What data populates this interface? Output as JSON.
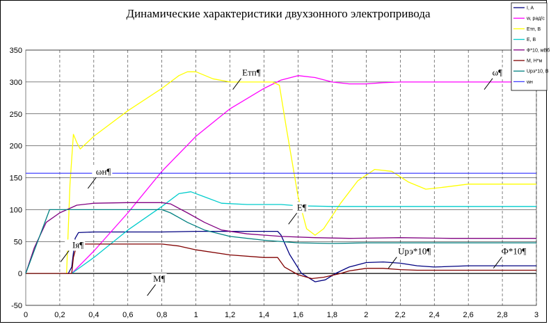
{
  "chart_data": {
    "type": "line",
    "title": "Динамические характеристики двухзонного электропривода",
    "xlabel": "",
    "ylabel": "",
    "xlim": [
      0,
      3
    ],
    "ylim": [
      -50,
      350
    ],
    "x_ticks": [
      0,
      0.2,
      0.4,
      0.6,
      0.8,
      1,
      1.2,
      1.4,
      1.6,
      1.8,
      2,
      2.2,
      2.4,
      2.6,
      2.8,
      3
    ],
    "x_tick_labels": [
      "0",
      "0,2",
      "0,4",
      "0,6",
      "0,8",
      "1",
      "1,2",
      "1,4",
      "1,6",
      "1,8",
      "2",
      "2,2",
      "2,4",
      "2,6",
      "2,8",
      "3"
    ],
    "y_ticks": [
      -50,
      0,
      50,
      100,
      150,
      200,
      250,
      300,
      350
    ],
    "y_tick_labels": [
      "-50",
      "0",
      "50",
      "100",
      "150",
      "200",
      "250",
      "300",
      "350"
    ],
    "grid": {
      "horizontal": true,
      "vertical": "dashed"
    },
    "legend_position": "top-right",
    "series": [
      {
        "name": "I, A",
        "color": "#000080",
        "points": [
          [
            0,
            0
          ],
          [
            0.25,
            0
          ],
          [
            0.27,
            10
          ],
          [
            0.29,
            55
          ],
          [
            0.31,
            64
          ],
          [
            0.4,
            65
          ],
          [
            0.8,
            65
          ],
          [
            1.0,
            66
          ],
          [
            1.2,
            66
          ],
          [
            1.48,
            66
          ],
          [
            1.5,
            60
          ],
          [
            1.55,
            30
          ],
          [
            1.62,
            0
          ],
          [
            1.7,
            -13
          ],
          [
            1.76,
            -10
          ],
          [
            1.82,
            0
          ],
          [
            1.9,
            10
          ],
          [
            2.0,
            17
          ],
          [
            2.1,
            18
          ],
          [
            2.2,
            16
          ],
          [
            2.3,
            12
          ],
          [
            2.4,
            10
          ],
          [
            2.6,
            12
          ],
          [
            2.8,
            12
          ],
          [
            3,
            12
          ]
        ]
      },
      {
        "name": "w, рад/с",
        "color": "#ff00ff",
        "points": [
          [
            0,
            0
          ],
          [
            0.27,
            0
          ],
          [
            0.4,
            35
          ],
          [
            0.6,
            95
          ],
          [
            0.8,
            160
          ],
          [
            1.0,
            215
          ],
          [
            1.2,
            258
          ],
          [
            1.4,
            290
          ],
          [
            1.5,
            303
          ],
          [
            1.6,
            310
          ],
          [
            1.7,
            307
          ],
          [
            1.8,
            300
          ],
          [
            1.9,
            297
          ],
          [
            2.0,
            297
          ],
          [
            2.1,
            299
          ],
          [
            2.2,
            300
          ],
          [
            2.4,
            300
          ],
          [
            2.6,
            300
          ],
          [
            2.8,
            300
          ],
          [
            3,
            300
          ]
        ]
      },
      {
        "name": "Етп, В",
        "color": "#ffff00",
        "points": [
          [
            0,
            0
          ],
          [
            0.24,
            0
          ],
          [
            0.26,
            140
          ],
          [
            0.28,
            218
          ],
          [
            0.3,
            205
          ],
          [
            0.32,
            195
          ],
          [
            0.4,
            215
          ],
          [
            0.6,
            255
          ],
          [
            0.8,
            290
          ],
          [
            0.9,
            310
          ],
          [
            0.95,
            316
          ],
          [
            1.0,
            316
          ],
          [
            1.1,
            305
          ],
          [
            1.2,
            300
          ],
          [
            1.35,
            300
          ],
          [
            1.45,
            300
          ],
          [
            1.49,
            295
          ],
          [
            1.53,
            230
          ],
          [
            1.6,
            120
          ],
          [
            1.65,
            70
          ],
          [
            1.7,
            60
          ],
          [
            1.75,
            70
          ],
          [
            1.85,
            110
          ],
          [
            1.95,
            145
          ],
          [
            2.05,
            163
          ],
          [
            2.15,
            160
          ],
          [
            2.25,
            143
          ],
          [
            2.35,
            132
          ],
          [
            2.45,
            135
          ],
          [
            2.6,
            140
          ],
          [
            2.8,
            140
          ],
          [
            3,
            140
          ]
        ]
      },
      {
        "name": "Е, В",
        "color": "#00cccc",
        "points": [
          [
            0,
            0
          ],
          [
            0.27,
            0
          ],
          [
            0.4,
            25
          ],
          [
            0.6,
            68
          ],
          [
            0.8,
            105
          ],
          [
            0.9,
            125
          ],
          [
            0.97,
            128
          ],
          [
            1.05,
            120
          ],
          [
            1.15,
            110
          ],
          [
            1.3,
            108
          ],
          [
            1.5,
            108
          ],
          [
            1.6,
            106
          ],
          [
            1.8,
            105
          ],
          [
            2.0,
            105
          ],
          [
            2.5,
            105
          ],
          [
            3,
            105
          ]
        ]
      },
      {
        "name": "Ф*10, мВб",
        "color": "#800080",
        "points": [
          [
            0,
            0
          ],
          [
            0.05,
            40
          ],
          [
            0.12,
            80
          ],
          [
            0.2,
            95
          ],
          [
            0.3,
            107
          ],
          [
            0.4,
            110
          ],
          [
            0.6,
            111
          ],
          [
            0.8,
            111
          ],
          [
            0.85,
            109
          ],
          [
            0.95,
            95
          ],
          [
            1.05,
            80
          ],
          [
            1.15,
            68
          ],
          [
            1.3,
            62
          ],
          [
            1.5,
            58
          ],
          [
            1.7,
            56
          ],
          [
            1.9,
            55
          ],
          [
            2.2,
            56
          ],
          [
            2.5,
            55
          ],
          [
            3,
            55
          ]
        ]
      },
      {
        "name": "М, Н*м",
        "color": "#800000",
        "points": [
          [
            0,
            0
          ],
          [
            0.27,
            0
          ],
          [
            0.28,
            25
          ],
          [
            0.3,
            45
          ],
          [
            0.35,
            46
          ],
          [
            0.6,
            46
          ],
          [
            0.8,
            46
          ],
          [
            0.9,
            43
          ],
          [
            1.0,
            37
          ],
          [
            1.2,
            29
          ],
          [
            1.4,
            25
          ],
          [
            1.48,
            25
          ],
          [
            1.52,
            10
          ],
          [
            1.6,
            -2
          ],
          [
            1.68,
            -8
          ],
          [
            1.75,
            -6
          ],
          [
            1.85,
            0
          ],
          [
            1.9,
            4
          ],
          [
            2.0,
            8
          ],
          [
            2.1,
            8
          ],
          [
            2.2,
            6
          ],
          [
            2.3,
            5
          ],
          [
            2.5,
            5
          ],
          [
            2.8,
            5
          ],
          [
            3,
            5
          ]
        ]
      },
      {
        "name": "Uрэ*10, В",
        "color": "#008080",
        "points": [
          [
            0,
            0
          ],
          [
            0.07,
            50
          ],
          [
            0.14,
            100
          ],
          [
            0.3,
            100
          ],
          [
            0.5,
            100
          ],
          [
            0.7,
            100
          ],
          [
            0.8,
            100
          ],
          [
            0.85,
            95
          ],
          [
            0.95,
            80
          ],
          [
            1.05,
            68
          ],
          [
            1.2,
            58
          ],
          [
            1.4,
            52
          ],
          [
            1.6,
            48
          ],
          [
            1.8,
            47
          ],
          [
            2.0,
            48
          ],
          [
            2.5,
            48
          ],
          [
            3,
            48
          ]
        ]
      },
      {
        "name": "wн",
        "color": "#4040ff",
        "points": [
          [
            0,
            157
          ],
          [
            3,
            157
          ]
        ]
      }
    ],
    "annotations": [
      {
        "text": "Етп¶",
        "x": 1.38,
        "y": 310
      },
      {
        "text": "ω¶",
        "x": 2.8,
        "y": 310
      },
      {
        "text": "ωн¶",
        "x": 0.5,
        "y": 155
      },
      {
        "text": "Е¶",
        "x": 1.65,
        "y": 99
      },
      {
        "text": "Iя¶",
        "x": 0.34,
        "y": 40
      },
      {
        "text": "М¶",
        "x": 0.82,
        "y": -13
      },
      {
        "text": "Uрэ*10¶",
        "x": 2.38,
        "y": 30
      },
      {
        "text": "Ф*10¶",
        "x": 2.94,
        "y": 30
      }
    ]
  }
}
